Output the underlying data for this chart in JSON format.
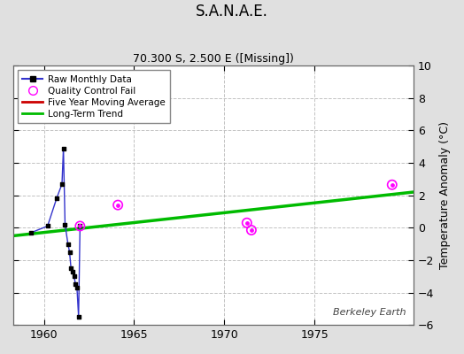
{
  "title": "S.A.N.A.E.",
  "subtitle": "70.300 S, 2.500 E ([Missing])",
  "ylabel": "Temperature Anomaly (°C)",
  "watermark": "Berkeley Earth",
  "xlim": [
    1958.3,
    1980.5
  ],
  "ylim": [
    -6,
    10
  ],
  "yticks": [
    -6,
    -4,
    -2,
    0,
    2,
    4,
    6,
    8,
    10
  ],
  "xticks": [
    1960,
    1965,
    1970,
    1975
  ],
  "bg_color": "#e0e0e0",
  "plot_bg_color": "#ffffff",
  "raw_data_x": [
    1959.3,
    1960.2,
    1960.7,
    1961.0,
    1961.08,
    1961.17,
    1961.33,
    1961.42,
    1961.5,
    1961.58,
    1961.67,
    1961.75,
    1961.83,
    1961.92,
    1962.0
  ],
  "raw_data_y": [
    -0.3,
    0.1,
    1.8,
    2.7,
    4.9,
    0.2,
    -1.0,
    -1.5,
    -2.5,
    -2.7,
    -3.0,
    -3.5,
    -3.7,
    -5.5,
    0.1
  ],
  "qc_fail_x": [
    1962.0,
    1964.1,
    1971.25,
    1971.5,
    1979.3
  ],
  "qc_fail_y": [
    0.1,
    1.4,
    0.3,
    -0.15,
    2.65
  ],
  "trend_x": [
    1958.3,
    1980.5
  ],
  "trend_y": [
    -0.5,
    2.2
  ],
  "raw_color": "#3333cc",
  "raw_marker_color": "#000000",
  "qc_color": "#ff00ff",
  "trend_color": "#00bb00",
  "five_year_color": "#cc0000"
}
